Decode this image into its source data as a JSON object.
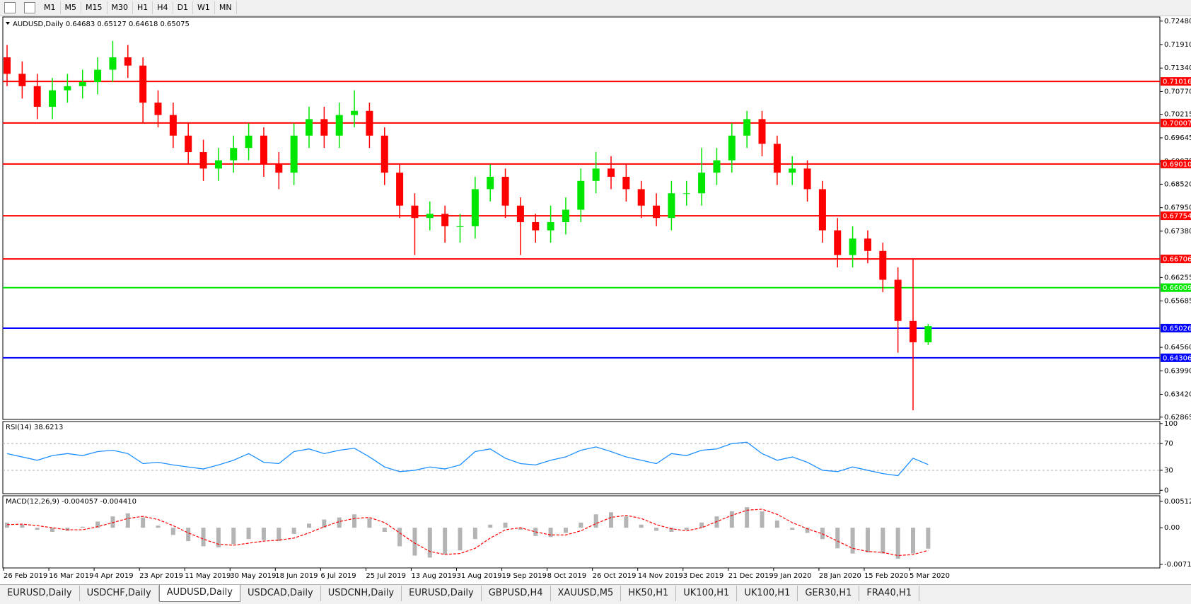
{
  "toolbar": {
    "timeframes": [
      "M1",
      "M5",
      "M15",
      "M30",
      "H1",
      "H4",
      "D1",
      "W1",
      "MN"
    ]
  },
  "main_chart": {
    "type": "candlestick",
    "header": "AUDUSD,Daily  0.64683 0.65127 0.64618 0.65075",
    "up_color": "#00e600",
    "down_color": "#ff0000",
    "open": [
      0.716,
      0.712,
      0.709,
      0.704,
      0.708,
      0.709,
      0.71,
      0.713,
      0.716,
      0.714,
      0.705,
      0.702,
      0.697,
      0.693,
      0.689,
      0.691,
      0.694,
      0.697,
      0.69,
      0.688,
      0.697,
      0.701,
      0.697,
      0.702,
      0.703,
      0.697,
      0.688,
      0.68,
      0.677,
      0.678,
      0.675,
      0.675,
      0.684,
      0.687,
      0.68,
      0.676,
      0.674,
      0.676,
      0.679,
      0.686,
      0.689,
      0.687,
      0.684,
      0.68,
      0.677,
      0.683,
      0.683,
      0.688,
      0.691,
      0.697,
      0.701,
      0.695,
      0.688,
      0.689,
      0.684,
      0.674,
      0.668,
      0.672,
      0.669,
      0.662,
      0.652,
      0.64683
    ],
    "high": [
      0.719,
      0.715,
      0.712,
      0.711,
      0.712,
      0.713,
      0.716,
      0.72,
      0.719,
      0.716,
      0.708,
      0.705,
      0.7,
      0.696,
      0.694,
      0.697,
      0.7,
      0.699,
      0.693,
      0.7,
      0.704,
      0.704,
      0.705,
      0.708,
      0.705,
      0.699,
      0.69,
      0.683,
      0.681,
      0.68,
      0.678,
      0.687,
      0.69,
      0.689,
      0.682,
      0.678,
      0.68,
      0.682,
      0.689,
      0.693,
      0.692,
      0.69,
      0.686,
      0.683,
      0.686,
      0.686,
      0.694,
      0.694,
      0.7,
      0.703,
      0.703,
      0.697,
      0.692,
      0.691,
      0.686,
      0.677,
      0.675,
      0.674,
      0.671,
      0.665,
      0.667,
      0.65127
    ],
    "low": [
      0.709,
      0.706,
      0.701,
      0.701,
      0.705,
      0.706,
      0.707,
      0.71,
      0.711,
      0.7,
      0.699,
      0.694,
      0.69,
      0.686,
      0.686,
      0.688,
      0.691,
      0.687,
      0.684,
      0.685,
      0.694,
      0.694,
      0.694,
      0.699,
      0.694,
      0.685,
      0.677,
      0.668,
      0.674,
      0.671,
      0.671,
      0.672,
      0.681,
      0.677,
      0.668,
      0.671,
      0.671,
      0.673,
      0.676,
      0.683,
      0.684,
      0.681,
      0.677,
      0.675,
      0.674,
      0.68,
      0.68,
      0.685,
      0.688,
      0.694,
      0.692,
      0.685,
      0.685,
      0.681,
      0.671,
      0.665,
      0.665,
      0.666,
      0.659,
      0.6443,
      0.6303,
      0.64618
    ],
    "close": [
      0.712,
      0.709,
      0.704,
      0.708,
      0.709,
      0.71,
      0.713,
      0.716,
      0.714,
      0.705,
      0.702,
      0.697,
      0.693,
      0.689,
      0.691,
      0.694,
      0.697,
      0.69,
      0.688,
      0.697,
      0.701,
      0.697,
      0.702,
      0.703,
      0.697,
      0.688,
      0.68,
      0.677,
      0.678,
      0.675,
      0.675,
      0.684,
      0.687,
      0.68,
      0.676,
      0.674,
      0.676,
      0.679,
      0.686,
      0.689,
      0.687,
      0.684,
      0.68,
      0.677,
      0.683,
      0.683,
      0.688,
      0.691,
      0.697,
      0.701,
      0.695,
      0.688,
      0.689,
      0.684,
      0.674,
      0.668,
      0.672,
      0.669,
      0.662,
      0.652,
      0.64683,
      0.65075
    ],
    "ylim": [
      0.6281,
      0.7258
    ],
    "yticks": [
      {
        "value": 0.7248,
        "label": "0.72480"
      },
      {
        "value": 0.7191,
        "label": "0.71910"
      },
      {
        "value": 0.7134,
        "label": "0.71340"
      },
      {
        "value": 0.7077,
        "label": "0.70770"
      },
      {
        "value": 0.70215,
        "label": "0.70215"
      },
      {
        "value": 0.69645,
        "label": "0.69645"
      },
      {
        "value": 0.69075,
        "label": "0.69075"
      },
      {
        "value": 0.6852,
        "label": "0.68520"
      },
      {
        "value": 0.6795,
        "label": "0.67950"
      },
      {
        "value": 0.6738,
        "label": "0.67380"
      },
      {
        "value": 0.66255,
        "label": "0.66255"
      },
      {
        "value": 0.65685,
        "label": "0.65685"
      },
      {
        "value": 0.6456,
        "label": "0.64560"
      },
      {
        "value": 0.6399,
        "label": "0.63990"
      },
      {
        "value": 0.6342,
        "label": "0.63420"
      },
      {
        "value": 0.62865,
        "label": "0.62865"
      }
    ],
    "levels": [
      {
        "value": 0.71016,
        "label": "0.71016",
        "color": "#ff0000"
      },
      {
        "value": 0.70007,
        "label": "0.70007",
        "color": "#ff0000"
      },
      {
        "value": 0.6901,
        "label": "0.69010",
        "color": "#ff0000"
      },
      {
        "value": 0.67754,
        "label": "0.67754",
        "color": "#ff0000"
      },
      {
        "value": 0.66706,
        "label": "0.66706",
        "color": "#ff0000"
      },
      {
        "value": 0.66009,
        "label": "0.66009",
        "color": "#00e600"
      },
      {
        "value": 0.65026,
        "label": "0.65026",
        "color": "#0000ff"
      },
      {
        "value": 0.64306,
        "label": "0.64306",
        "color": "#0000ff"
      }
    ],
    "dates": [
      "26 Feb 2019",
      "16 Mar 2019",
      "4 Apr 2019",
      "23 Apr 2019",
      "11 May 2019",
      "30 May 2019",
      "18 Jun 2019",
      "6 Jul 2019",
      "25 Jul 2019",
      "13 Aug 2019",
      "31 Aug 2019",
      "19 Sep 2019",
      "8 Oct 2019",
      "26 Oct 2019",
      "14 Nov 2019",
      "3 Dec 2019",
      "21 Dec 2019",
      "9 Jan 2020",
      "28 Jan 2020",
      "15 Feb 2020",
      "5 Mar 2020"
    ]
  },
  "rsi_panel": {
    "type": "line",
    "label": "RSI(14) 38.6213",
    "color": "#1e90ff",
    "values": [
      55,
      50,
      45,
      52,
      55,
      52,
      58,
      60,
      55,
      40,
      42,
      38,
      35,
      32,
      38,
      45,
      55,
      42,
      40,
      58,
      62,
      55,
      60,
      63,
      50,
      35,
      28,
      30,
      35,
      32,
      38,
      58,
      62,
      48,
      40,
      38,
      45,
      50,
      60,
      65,
      58,
      50,
      45,
      40,
      55,
      52,
      60,
      62,
      70,
      72,
      55,
      45,
      50,
      42,
      30,
      28,
      35,
      30,
      25,
      22,
      48,
      38.6213
    ],
    "ylim": [
      -5,
      103
    ],
    "yticks": [
      100,
      70,
      30,
      0
    ],
    "guides": [
      70,
      30
    ]
  },
  "macd_panel": {
    "type": "macd",
    "label": "MACD(12,26,9) -0.004057 -0.004410",
    "hist_color": "#b4b4b4",
    "signal_color": "#ff0000",
    "histogram": [
      0.001,
      0.0006,
      -0.0004,
      -0.0008,
      -0.0006,
      0.0002,
      0.0012,
      0.0022,
      0.0028,
      0.002,
      0.0004,
      -0.0014,
      -0.0026,
      -0.0036,
      -0.0038,
      -0.0032,
      -0.0022,
      -0.0024,
      -0.0026,
      -0.0012,
      0.0008,
      0.0016,
      0.002,
      0.0026,
      0.0018,
      -0.0008,
      -0.0036,
      -0.0054,
      -0.0058,
      -0.0052,
      -0.0044,
      -0.0022,
      0.0006,
      0.001,
      -0.0004,
      -0.0016,
      -0.0018,
      -0.001,
      0.001,
      0.0026,
      0.003,
      0.0022,
      0.0006,
      -0.0006,
      -0.0008,
      -0.0004,
      0.001,
      0.0022,
      0.0032,
      0.004,
      0.0032,
      0.0014,
      -0.0004,
      -0.001,
      -0.0022,
      -0.004,
      -0.005,
      -0.0048,
      -0.005,
      -0.006,
      -0.005,
      -0.004057
    ],
    "signal": [
      0.0006,
      0.0007,
      0.0004,
      0.0,
      -0.0004,
      -0.0004,
      0.0002,
      0.001,
      0.0018,
      0.0022,
      0.0016,
      0.0004,
      -0.001,
      -0.0022,
      -0.0032,
      -0.0034,
      -0.003,
      -0.0026,
      -0.0024,
      -0.002,
      -0.001,
      0.0002,
      0.0012,
      0.0018,
      0.002,
      0.001,
      -0.001,
      -0.003,
      -0.0046,
      -0.0052,
      -0.005,
      -0.004,
      -0.002,
      -0.0004,
      0.0,
      -0.0008,
      -0.0014,
      -0.0014,
      -0.0006,
      0.0008,
      0.002,
      0.0024,
      0.0018,
      0.0006,
      -0.0002,
      -0.0006,
      0.0,
      0.0012,
      0.0024,
      0.0034,
      0.0036,
      0.0026,
      0.001,
      -0.0002,
      -0.0012,
      -0.0026,
      -0.004,
      -0.0046,
      -0.0048,
      -0.0054,
      -0.0052,
      -0.00441
    ],
    "ylim": [
      -0.0078,
      0.0062
    ],
    "yticks": [
      0.005121,
      {
        "value": 0,
        "label": "0.00"
      },
      -0.007111
    ]
  },
  "tabs": {
    "items": [
      "EURUSD,Daily",
      "USDCHF,Daily",
      "AUDUSD,Daily",
      "USDCAD,Daily",
      "USDCNH,Daily",
      "EURUSD,Daily",
      "GBPUSD,H4",
      "XAUUSD,M5",
      "HK50,H1",
      "UK100,H1",
      "UK100,H1",
      "GER30,H1",
      "FRA40,H1"
    ],
    "active": 2
  }
}
